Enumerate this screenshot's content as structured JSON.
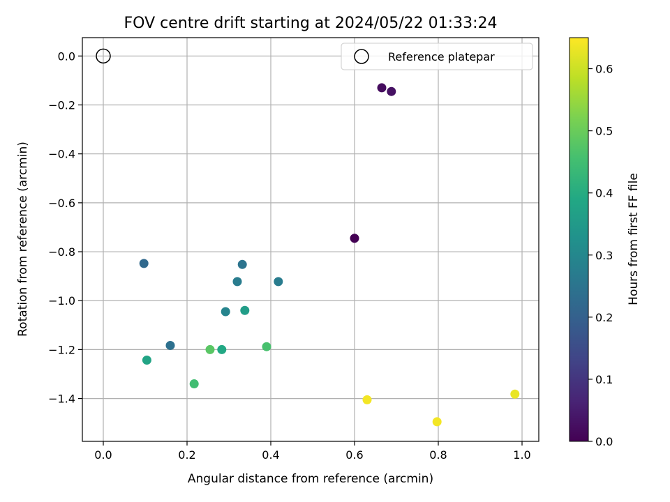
{
  "chart_data": {
    "type": "scatter",
    "title": "FOV centre drift starting at 2024/05/22 01:33:24",
    "xlabel": "Angular distance from reference (arcmin)",
    "ylabel": "Rotation from reference (arcmin)",
    "colorbar_label": "Hours from first FF file",
    "xlim": [
      -0.05,
      1.04
    ],
    "ylim": [
      -1.575,
      0.075
    ],
    "clim": [
      0.0,
      0.65
    ],
    "x_ticks": [
      0.0,
      0.2,
      0.4,
      0.6,
      0.8,
      1.0
    ],
    "x_tick_labels": [
      "0.0",
      "0.2",
      "0.4",
      "0.6",
      "0.8",
      "1.0"
    ],
    "y_ticks": [
      0.0,
      -0.2,
      -0.4,
      -0.6,
      -0.8,
      -1.0,
      -1.2,
      -1.4
    ],
    "y_tick_labels": [
      "0.0",
      "−0.2",
      "−0.4",
      "−0.6",
      "−0.8",
      "−1.0",
      "−1.2",
      "−1.4"
    ],
    "colorbar_ticks": [
      0.0,
      0.1,
      0.2,
      0.3,
      0.4,
      0.5,
      0.6
    ],
    "colorbar_tick_labels": [
      "0.0",
      "0.1",
      "0.2",
      "0.3",
      "0.4",
      "0.5",
      "0.6"
    ],
    "grid": true,
    "legend_position": "top-right",
    "colormap": "viridis",
    "reference": {
      "name": "Reference platepar",
      "x": 0.0,
      "y": 0.0
    },
    "points": [
      {
        "x": 0.665,
        "y": -0.13,
        "c": 0.02
      },
      {
        "x": 0.688,
        "y": -0.145,
        "c": 0.03
      },
      {
        "x": 0.6,
        "y": -0.745,
        "c": 0.0
      },
      {
        "x": 0.097,
        "y": -0.848,
        "c": 0.22
      },
      {
        "x": 0.332,
        "y": -0.852,
        "c": 0.25
      },
      {
        "x": 0.32,
        "y": -0.922,
        "c": 0.27
      },
      {
        "x": 0.418,
        "y": -0.922,
        "c": 0.27
      },
      {
        "x": 0.292,
        "y": -1.045,
        "c": 0.29
      },
      {
        "x": 0.338,
        "y": -1.04,
        "c": 0.36
      },
      {
        "x": 0.16,
        "y": -1.183,
        "c": 0.24
      },
      {
        "x": 0.255,
        "y": -1.2,
        "c": 0.48
      },
      {
        "x": 0.283,
        "y": -1.2,
        "c": 0.39
      },
      {
        "x": 0.39,
        "y": -1.188,
        "c": 0.46
      },
      {
        "x": 0.104,
        "y": -1.243,
        "c": 0.38
      },
      {
        "x": 0.217,
        "y": -1.34,
        "c": 0.45
      },
      {
        "x": 0.63,
        "y": -1.405,
        "c": 0.64
      },
      {
        "x": 0.797,
        "y": -1.495,
        "c": 0.64
      },
      {
        "x": 0.983,
        "y": -1.382,
        "c": 0.63
      }
    ]
  }
}
